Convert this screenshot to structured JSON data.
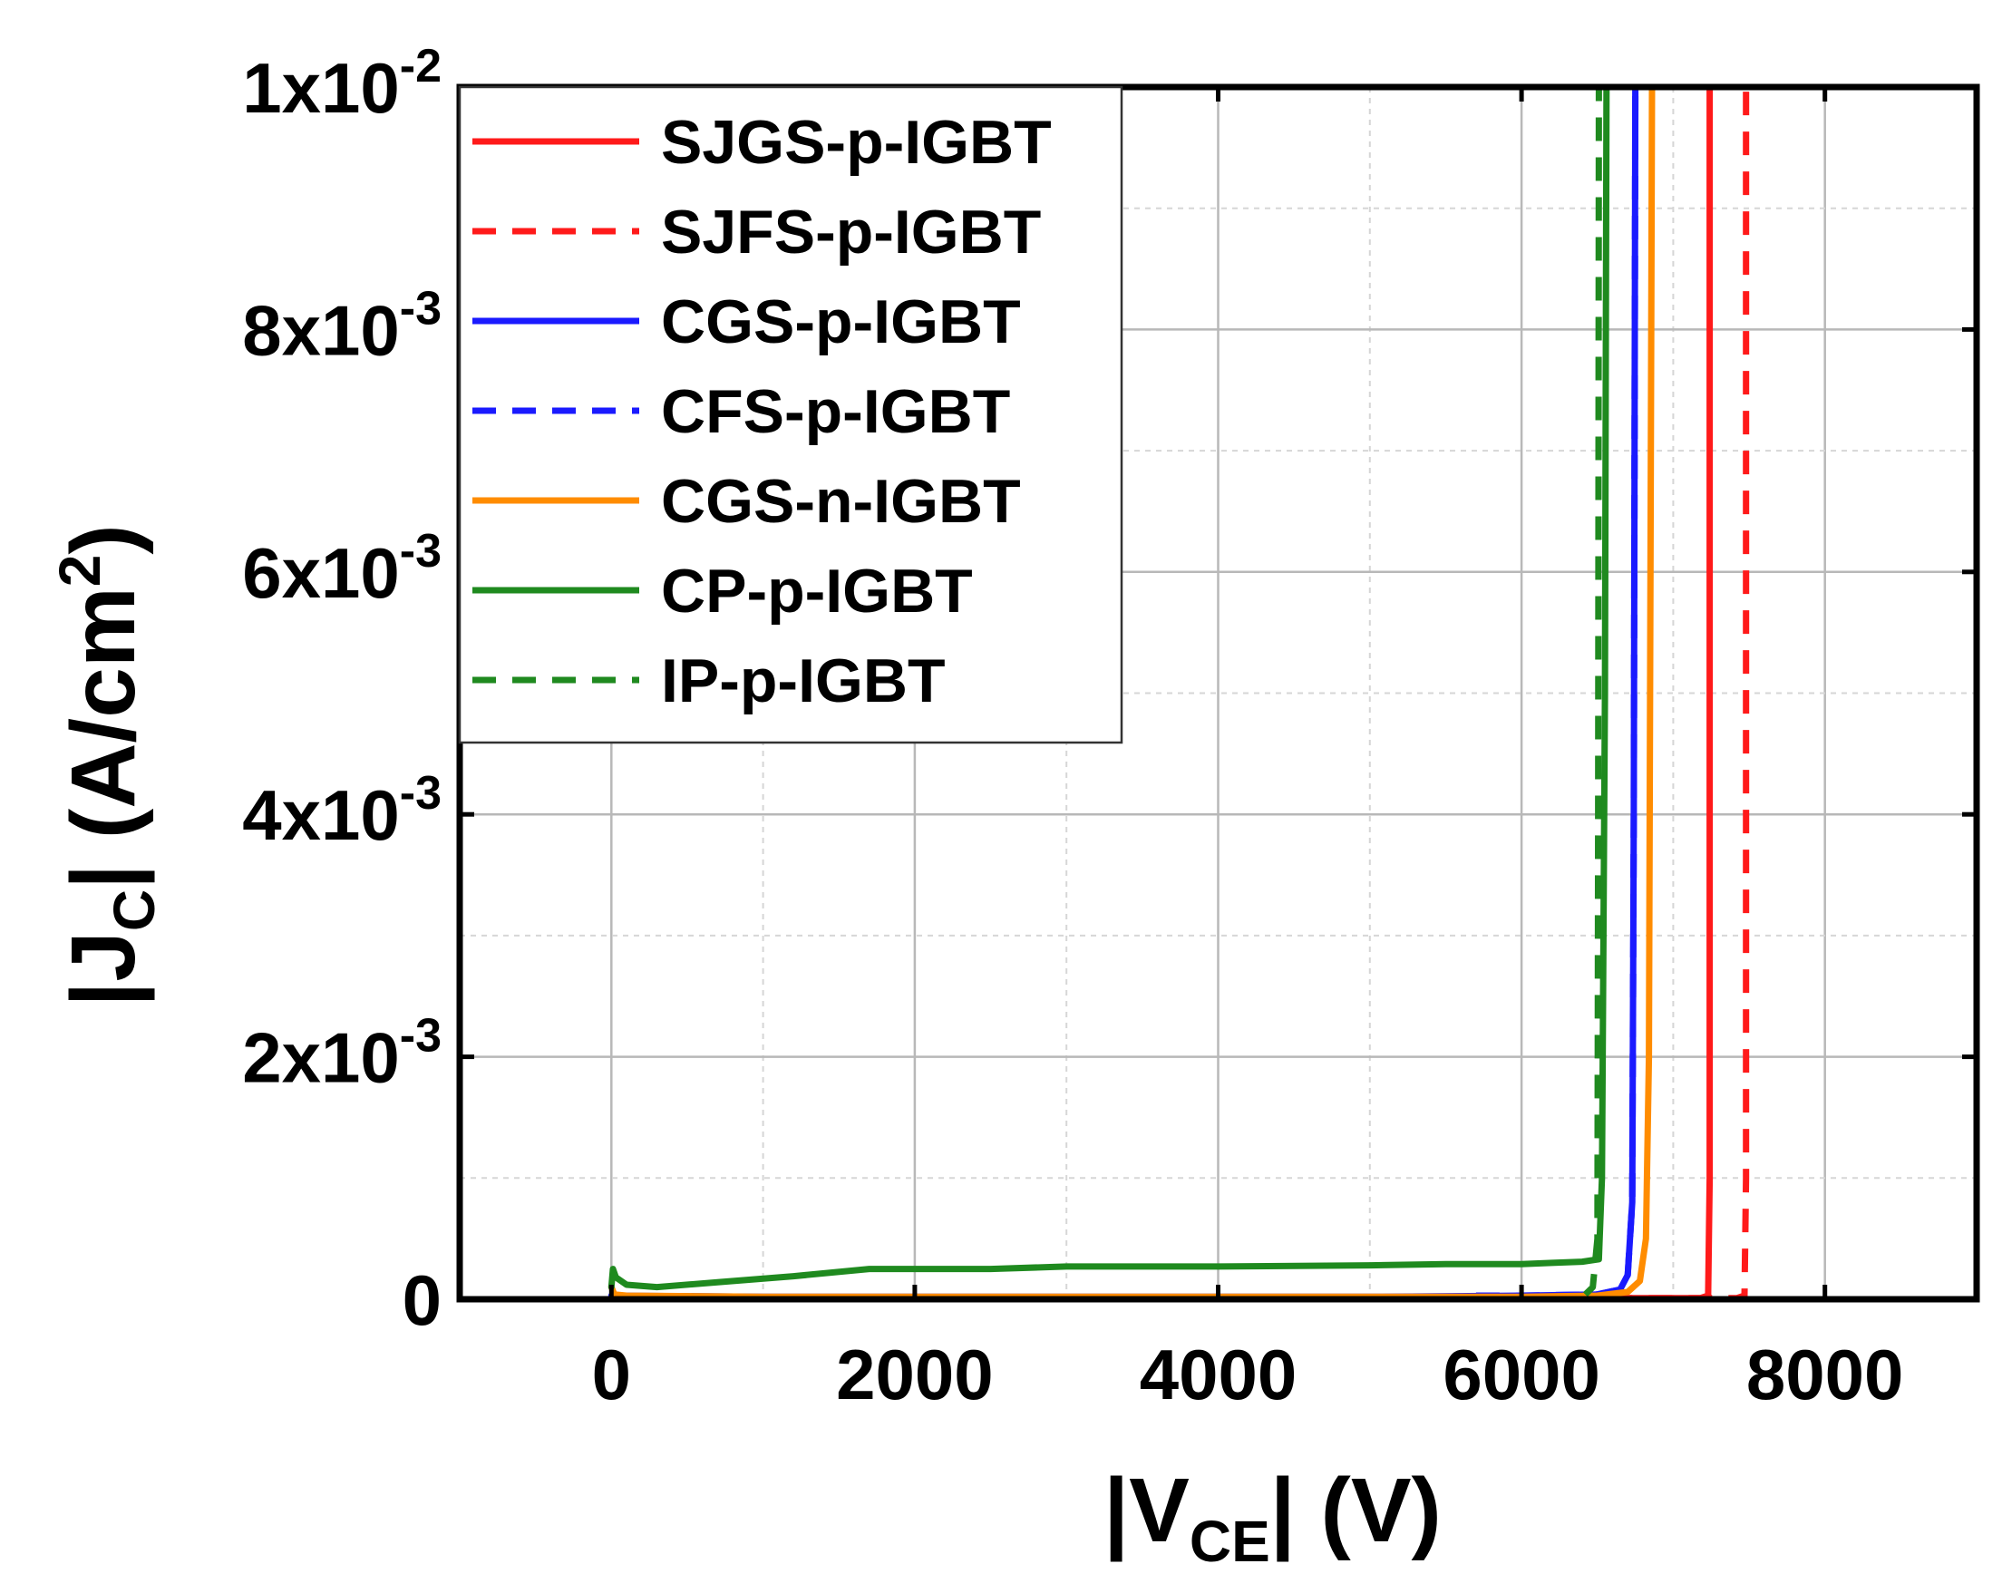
{
  "chart_data": {
    "type": "line",
    "title": "",
    "xlabel": {
      "prefix": "|V",
      "sub": "CE",
      "suffix": "| (V)"
    },
    "ylabel": {
      "prefix": "|J",
      "sub": "C",
      "suffix": "| (A/cm",
      "sup": "2",
      "end": ")"
    },
    "xlim": [
      -1000,
      9000
    ],
    "ylim": [
      0,
      0.01
    ],
    "x_ticks": [
      {
        "value": 0,
        "label": "0"
      },
      {
        "value": 2000,
        "label": "2000"
      },
      {
        "value": 4000,
        "label": "4000"
      },
      {
        "value": 6000,
        "label": "6000"
      },
      {
        "value": 8000,
        "label": "8000"
      }
    ],
    "y_ticks": [
      {
        "value": 0,
        "label": "0"
      },
      {
        "value": 0.002,
        "mant": "2x10",
        "exp": "-3"
      },
      {
        "value": 0.004,
        "mant": "4x10",
        "exp": "-3"
      },
      {
        "value": 0.006,
        "mant": "6x10",
        "exp": "-3"
      },
      {
        "value": 0.008,
        "mant": "8x10",
        "exp": "-3"
      },
      {
        "value": 0.01,
        "mant": "1x10",
        "exp": "-2"
      }
    ],
    "grid": true,
    "legend_position": "top-left",
    "series": [
      {
        "name": "SJGS-p-IGBT",
        "color": "#ff1a1a",
        "dash": "solid",
        "x": [
          0,
          1000,
          3000,
          5000,
          6500,
          7180,
          7230,
          7240,
          7240
        ],
        "y": [
          2e-05,
          1e-05,
          1e-05,
          1e-05,
          1e-05,
          1e-05,
          3e-05,
          0.001,
          0.01
        ]
      },
      {
        "name": "SJFS-p-IGBT",
        "color": "#ff1a1a",
        "dash": "dashed",
        "x": [
          0,
          1000,
          3000,
          5000,
          6500,
          7420,
          7470,
          7480,
          7480
        ],
        "y": [
          2e-05,
          1e-05,
          1e-05,
          1e-05,
          1e-05,
          1e-05,
          3e-05,
          0.001,
          0.01
        ]
      },
      {
        "name": "CGS-p-IGBT",
        "color": "#1a1aff",
        "dash": "solid",
        "x": [
          0,
          1000,
          3000,
          5000,
          6000,
          6500,
          6650,
          6700,
          6730,
          6740,
          6750
        ],
        "y": [
          3e-05,
          2e-05,
          2e-05,
          2e-05,
          3e-05,
          4e-05,
          8e-05,
          0.0002,
          0.0008,
          0.004,
          0.01
        ]
      },
      {
        "name": "CFS-p-IGBT",
        "color": "#1a1aff",
        "dash": "dashed",
        "x": [
          5700,
          6000,
          6500,
          6650,
          6700,
          6730,
          6740,
          6750
        ],
        "y": [
          3e-05,
          3e-05,
          4e-05,
          8e-05,
          0.0002,
          0.0008,
          0.004,
          0.01
        ]
      },
      {
        "name": "CGS-n-IGBT",
        "color": "#ff8c00",
        "dash": "solid",
        "x": [
          0,
          20,
          100,
          1000,
          3000,
          5000,
          6000,
          6500,
          6700,
          6780,
          6820,
          6840,
          6850,
          6860
        ],
        "y": [
          0.0001,
          4e-05,
          3e-05,
          2e-05,
          2e-05,
          2e-05,
          2e-05,
          3e-05,
          6e-05,
          0.00015,
          0.0005,
          0.002,
          0.006,
          0.01
        ]
      },
      {
        "name": "CP-p-IGBT",
        "color": "#1f8a1f",
        "dash": "solid",
        "x": [
          0,
          10,
          30,
          100,
          300,
          700,
          1200,
          1700,
          2500,
          3000,
          4000,
          5000,
          5500,
          6000,
          6200,
          6400,
          6510,
          6530,
          6550,
          6560
        ],
        "y": [
          0.0001,
          0.00025,
          0.00018,
          0.00012,
          0.0001,
          0.00014,
          0.00019,
          0.00025,
          0.00025,
          0.00027,
          0.00027,
          0.00028,
          0.00029,
          0.00029,
          0.0003,
          0.00031,
          0.00033,
          0.001,
          0.005,
          0.01
        ]
      },
      {
        "name": "IP-p-IGBT",
        "color": "#1f8a1f",
        "dash": "dashed",
        "x": [
          6420,
          6470,
          6500,
          6505,
          6510
        ],
        "y": [
          4e-05,
          0.0001,
          0.0005,
          0.004,
          0.01
        ]
      }
    ]
  }
}
